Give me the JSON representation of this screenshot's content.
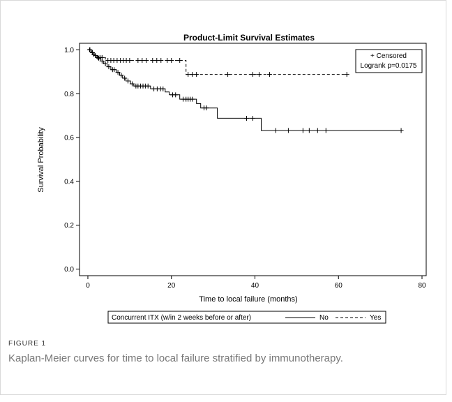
{
  "caption": {
    "label": "FIGURE 1",
    "text": "Kaplan-Meier curves for time to local failure stratified by immunotherapy."
  },
  "chart_data": {
    "type": "line",
    "title": "Product-Limit Survival Estimates",
    "xlabel": "Time to local failure (months)",
    "ylabel": "Survival Probability",
    "xlim": [
      -2,
      81
    ],
    "ylim": [
      -0.03,
      1.03
    ],
    "xticks": [
      0,
      20,
      40,
      60,
      80
    ],
    "yticks": [
      0.0,
      0.2,
      0.4,
      0.6,
      0.8,
      1.0
    ],
    "ytick_labels": [
      "0.0",
      "0.2",
      "0.4",
      "0.6",
      "0.8",
      "1.0"
    ],
    "grid": false,
    "inset": {
      "censored_label": "+ Censored",
      "logrank_label": "Logrank p=0.0175",
      "position": "top-right"
    },
    "legend": {
      "title": "Concurrent ITX (w/in 2 weeks before or after)",
      "position": "bottom"
    },
    "series": [
      {
        "name": "No",
        "dash": "solid",
        "color": "#000000",
        "steps": [
          [
            0,
            1.0
          ],
          [
            0.8,
            0.987
          ],
          [
            1.5,
            0.974
          ],
          [
            2.3,
            0.962
          ],
          [
            3.0,
            0.949
          ],
          [
            3.8,
            0.936
          ],
          [
            4.6,
            0.923
          ],
          [
            5.5,
            0.91
          ],
          [
            6.8,
            0.897
          ],
          [
            7.6,
            0.884
          ],
          [
            8.3,
            0.871
          ],
          [
            9.1,
            0.858
          ],
          [
            10.2,
            0.845
          ],
          [
            11.0,
            0.835
          ],
          [
            15.0,
            0.822
          ],
          [
            18.5,
            0.808
          ],
          [
            19.5,
            0.795
          ],
          [
            22.0,
            0.775
          ],
          [
            26.0,
            0.755
          ],
          [
            27.0,
            0.735
          ],
          [
            31.0,
            0.688
          ],
          [
            41.5,
            0.632
          ],
          [
            75.5,
            0.632
          ]
        ],
        "censored": [
          [
            0.4,
            1.0
          ],
          [
            1.1,
            0.987
          ],
          [
            1.8,
            0.974
          ],
          [
            2.6,
            0.962
          ],
          [
            3.4,
            0.949
          ],
          [
            4.2,
            0.936
          ],
          [
            5.0,
            0.923
          ],
          [
            5.9,
            0.91
          ],
          [
            6.3,
            0.91
          ],
          [
            7.2,
            0.897
          ],
          [
            8.0,
            0.884
          ],
          [
            8.8,
            0.871
          ],
          [
            9.6,
            0.858
          ],
          [
            10.6,
            0.845
          ],
          [
            11.5,
            0.835
          ],
          [
            12.0,
            0.835
          ],
          [
            12.6,
            0.835
          ],
          [
            13.2,
            0.835
          ],
          [
            13.8,
            0.835
          ],
          [
            14.4,
            0.835
          ],
          [
            15.8,
            0.822
          ],
          [
            16.6,
            0.822
          ],
          [
            17.4,
            0.822
          ],
          [
            18.0,
            0.822
          ],
          [
            20.3,
            0.795
          ],
          [
            21.0,
            0.795
          ],
          [
            22.8,
            0.775
          ],
          [
            23.5,
            0.775
          ],
          [
            24.0,
            0.775
          ],
          [
            24.5,
            0.775
          ],
          [
            25.0,
            0.775
          ],
          [
            27.8,
            0.735
          ],
          [
            28.4,
            0.735
          ],
          [
            38.0,
            0.688
          ],
          [
            39.5,
            0.688
          ],
          [
            45.0,
            0.632
          ],
          [
            48.0,
            0.632
          ],
          [
            51.5,
            0.632
          ],
          [
            53.0,
            0.632
          ],
          [
            55.0,
            0.632
          ],
          [
            57.0,
            0.632
          ],
          [
            75.0,
            0.632
          ]
        ]
      },
      {
        "name": "Yes",
        "dash": "dashed",
        "color": "#000000",
        "steps": [
          [
            0,
            1.0
          ],
          [
            1.0,
            0.98
          ],
          [
            2.0,
            0.965
          ],
          [
            4.2,
            0.952
          ],
          [
            23.5,
            0.888
          ],
          [
            62.0,
            0.888
          ]
        ],
        "censored": [
          [
            0.5,
            1.0
          ],
          [
            1.4,
            0.98
          ],
          [
            2.4,
            0.965
          ],
          [
            2.9,
            0.965
          ],
          [
            3.4,
            0.965
          ],
          [
            4.8,
            0.952
          ],
          [
            5.5,
            0.952
          ],
          [
            6.2,
            0.952
          ],
          [
            7.0,
            0.952
          ],
          [
            7.8,
            0.952
          ],
          [
            8.5,
            0.952
          ],
          [
            9.2,
            0.952
          ],
          [
            10.0,
            0.952
          ],
          [
            12.0,
            0.952
          ],
          [
            13.0,
            0.952
          ],
          [
            14.0,
            0.952
          ],
          [
            15.5,
            0.952
          ],
          [
            16.5,
            0.952
          ],
          [
            17.5,
            0.952
          ],
          [
            19.0,
            0.952
          ],
          [
            20.0,
            0.952
          ],
          [
            22.0,
            0.952
          ],
          [
            24.0,
            0.888
          ],
          [
            25.0,
            0.888
          ],
          [
            26.0,
            0.888
          ],
          [
            33.5,
            0.888
          ],
          [
            39.5,
            0.888
          ],
          [
            41.0,
            0.888
          ],
          [
            43.5,
            0.888
          ],
          [
            62.0,
            0.888
          ]
        ]
      }
    ]
  }
}
